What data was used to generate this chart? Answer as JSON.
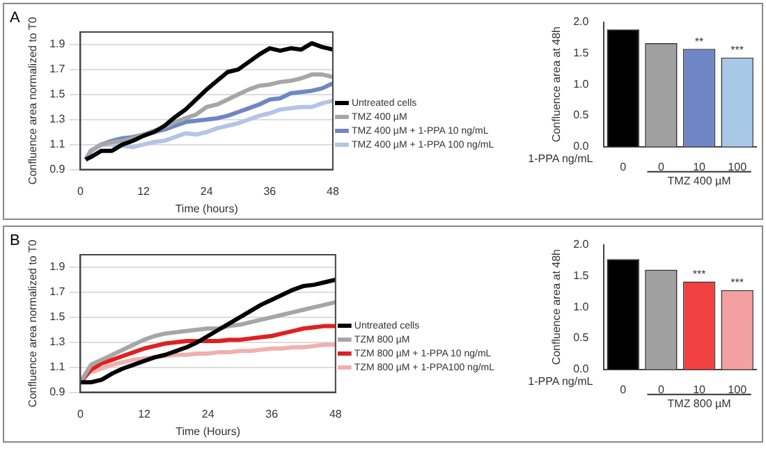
{
  "chart_data": [
    {
      "type": "line",
      "annotations": [
        "A"
      ],
      "xlabel": "Time (hours)",
      "ylabel": "Confluence area normalized to T0",
      "x": [
        1,
        2,
        4,
        6,
        8,
        10,
        12,
        14,
        16,
        18,
        20,
        22,
        24,
        26,
        28,
        30,
        32,
        34,
        36,
        38,
        40,
        42,
        44,
        46,
        48
      ],
      "xlim": [
        0,
        48
      ],
      "xticks": [
        0,
        12,
        24,
        36,
        48
      ],
      "ylim": [
        0.9,
        2.0
      ],
      "yticks": [
        0.9,
        1.1,
        1.3,
        1.5,
        1.7,
        1.9
      ],
      "grid": "y",
      "legend": "right",
      "marker": "none",
      "line_style": "solid",
      "series": [
        {
          "name": "Untreated cells",
          "color": "#000000",
          "values": [
            0.98,
            1.0,
            1.05,
            1.05,
            1.1,
            1.13,
            1.17,
            1.2,
            1.25,
            1.32,
            1.38,
            1.46,
            1.54,
            1.61,
            1.68,
            1.7,
            1.76,
            1.82,
            1.87,
            1.85,
            1.87,
            1.86,
            1.91,
            1.88,
            1.86
          ]
        },
        {
          "name": "TMZ 400 µM",
          "color": "#a6a6a6",
          "values": [
            0.98,
            1.05,
            1.1,
            1.12,
            1.13,
            1.15,
            1.18,
            1.21,
            1.24,
            1.28,
            1.31,
            1.34,
            1.4,
            1.42,
            1.46,
            1.5,
            1.54,
            1.57,
            1.58,
            1.6,
            1.61,
            1.63,
            1.66,
            1.66,
            1.64
          ]
        },
        {
          "name": "TMZ 400 µM + 1-PPA 10 ng/mL",
          "color": "#6f86c6",
          "values": [
            0.98,
            1.05,
            1.1,
            1.13,
            1.15,
            1.16,
            1.18,
            1.2,
            1.22,
            1.25,
            1.28,
            1.29,
            1.3,
            1.31,
            1.33,
            1.36,
            1.39,
            1.42,
            1.46,
            1.47,
            1.51,
            1.52,
            1.53,
            1.55,
            1.59
          ]
        },
        {
          "name": "TMZ 400 µM + 1-PPA 100 ng/mL",
          "color": "#b4c4e4",
          "values": [
            0.98,
            1.05,
            1.1,
            1.1,
            1.09,
            1.08,
            1.1,
            1.12,
            1.13,
            1.16,
            1.19,
            1.18,
            1.2,
            1.23,
            1.25,
            1.27,
            1.3,
            1.33,
            1.35,
            1.38,
            1.39,
            1.4,
            1.4,
            1.43,
            1.45
          ]
        }
      ]
    },
    {
      "type": "bar",
      "ylabel": "Confluence area at 48h",
      "categories": [
        "0",
        "0",
        "10",
        "100"
      ],
      "values": [
        1.88,
        1.66,
        1.57,
        1.43
      ],
      "colors": [
        "#000000",
        "#a0a0a0",
        "#6f86c6",
        "#a8c8e8"
      ],
      "ylim": [
        0,
        2
      ],
      "yticks": [
        {
          "value": 0,
          "label": "0.0"
        },
        {
          "value": 0.5,
          "label": "0.5"
        },
        {
          "value": 1,
          "label": "1.0"
        },
        {
          "value": 1.5,
          "label": "1.5"
        },
        {
          "value": 2,
          "label": "2.0"
        }
      ],
      "annotations": [
        "1-PPA ng/mL",
        "TMZ 400 µM",
        {
          "text": "**",
          "x": "10",
          "y": 1.57
        },
        {
          "text": "***",
          "x": "100",
          "y": 1.43
        }
      ]
    },
    {
      "type": "line",
      "annotations": [
        "B"
      ],
      "xlabel": "Time (Hours)",
      "ylabel": "Confluence area normalized to T0",
      "x": [
        0,
        2,
        4,
        6,
        8,
        10,
        12,
        14,
        16,
        18,
        20,
        22,
        24,
        26,
        28,
        30,
        32,
        34,
        36,
        38,
        40,
        42,
        44,
        46,
        48
      ],
      "xlim": [
        0,
        48
      ],
      "xticks": [
        0,
        12,
        24,
        36,
        48
      ],
      "ylim": [
        0.9,
        2.0
      ],
      "yticks": [
        0.9,
        1.1,
        1.3,
        1.5,
        1.7,
        1.9
      ],
      "grid": "y",
      "legend": "right",
      "marker": "none",
      "line_style": "solid",
      "series": [
        {
          "name": "Untreated cells",
          "color": "#000000",
          "values": [
            0.98,
            0.98,
            1.0,
            1.05,
            1.09,
            1.12,
            1.15,
            1.18,
            1.2,
            1.23,
            1.26,
            1.3,
            1.35,
            1.4,
            1.45,
            1.5,
            1.55,
            1.6,
            1.64,
            1.68,
            1.72,
            1.75,
            1.76,
            1.78,
            1.8
          ]
        },
        {
          "name": "TZM 800 µM",
          "color": "#a6a6a6",
          "values": [
            0.98,
            1.12,
            1.16,
            1.2,
            1.24,
            1.28,
            1.32,
            1.35,
            1.37,
            1.38,
            1.39,
            1.4,
            1.41,
            1.41,
            1.43,
            1.44,
            1.46,
            1.48,
            1.5,
            1.52,
            1.54,
            1.56,
            1.58,
            1.6,
            1.62
          ]
        },
        {
          "name": "TZM 800 µM + 1-PPA 10 ng/mL",
          "color": "#e02020",
          "values": [
            0.98,
            1.08,
            1.13,
            1.16,
            1.19,
            1.22,
            1.25,
            1.27,
            1.29,
            1.3,
            1.31,
            1.31,
            1.31,
            1.31,
            1.32,
            1.32,
            1.33,
            1.34,
            1.35,
            1.37,
            1.39,
            1.41,
            1.42,
            1.43,
            1.43
          ]
        },
        {
          "name": "TZM 800 µM + 1-PPA100 ng/mL",
          "color": "#f0b0b0",
          "values": [
            null,
            1.06,
            1.09,
            1.12,
            1.14,
            1.16,
            1.17,
            1.18,
            1.19,
            1.2,
            1.2,
            1.21,
            1.21,
            1.22,
            1.22,
            1.23,
            1.23,
            1.24,
            1.25,
            1.25,
            1.26,
            1.26,
            1.27,
            1.28,
            1.28
          ]
        }
      ]
    },
    {
      "type": "bar",
      "ylabel": "Confluence area at 48h",
      "categories": [
        "0",
        "0",
        "10",
        "100"
      ],
      "values": [
        1.77,
        1.6,
        1.41,
        1.27
      ],
      "colors": [
        "#000000",
        "#a0a0a0",
        "#f04040",
        "#f4a0a0"
      ],
      "ylim": [
        0,
        2
      ],
      "yticks": [
        {
          "value": 0,
          "label": "0.0"
        },
        {
          "value": 0.5,
          "label": "0.5"
        },
        {
          "value": 1,
          "label": "1.0"
        },
        {
          "value": 1.5,
          "label": "1.5"
        },
        {
          "value": 2,
          "label": "2.0"
        }
      ],
      "annotations": [
        "1-PPA ng/mL",
        "TMZ 800 µM",
        {
          "text": "***",
          "x": "10",
          "y": 1.41
        },
        {
          "text": "***",
          "x": "100",
          "y": 1.27
        }
      ]
    }
  ]
}
